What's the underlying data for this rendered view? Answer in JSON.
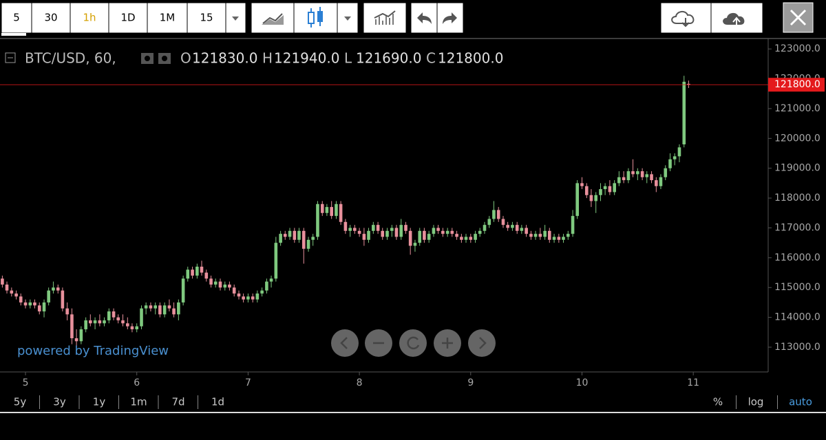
{
  "toolbar": {
    "intervals": [
      "5",
      "30",
      "1h",
      "1D",
      "1M",
      "15"
    ]
  },
  "status_line": {
    "symbol": "BTC/USD, 60,",
    "items": [
      {
        "key": "O",
        "value": "121830.0"
      },
      {
        "key": "H",
        "value": "121940.0"
      },
      {
        "key": "L",
        "value": "121690.0"
      },
      {
        "key": "C",
        "value": "121800.0"
      }
    ]
  },
  "branding": "powered by TradingView",
  "ranges": [
    "5y",
    "3y",
    "1y",
    "1m",
    "7d",
    "1d"
  ],
  "scale_options": [
    "%",
    "log",
    "auto"
  ],
  "chart_data": {
    "type": "candlestick",
    "up_color": "#7fc97f",
    "down_color": "#e8909c",
    "last_price_color": "#e41a1c",
    "xlim": [
      4.771,
      11.673
    ],
    "xticks": [
      5,
      6,
      7,
      8,
      9,
      10,
      11
    ],
    "ylim": [
      112170,
      123350
    ],
    "yticks": [
      {
        "value": 113000,
        "label": "113000.0"
      },
      {
        "value": 114000,
        "label": "114000.0"
      },
      {
        "value": 115000,
        "label": "115000.0"
      },
      {
        "value": 116000,
        "label": "116000.0"
      },
      {
        "value": 117000,
        "label": "117000.0"
      },
      {
        "value": 118000,
        "label": "118000.0"
      },
      {
        "value": 119000,
        "label": "119000.0"
      },
      {
        "value": 120000,
        "label": "120000.0"
      },
      {
        "value": 121000,
        "label": "121000.0"
      },
      {
        "value": 122000,
        "label": "122000.0"
      },
      {
        "value": 123000,
        "label": "123000.0"
      }
    ],
    "last_price": {
      "value": 121800,
      "label": "121800.0"
    },
    "x": [
      4.792,
      4.833,
      4.875,
      4.917,
      4.958,
      5,
      5.042,
      5.083,
      5.125,
      5.167,
      5.208,
      5.25,
      5.292,
      5.333,
      5.375,
      5.417,
      5.458,
      5.5,
      5.542,
      5.583,
      5.625,
      5.667,
      5.708,
      5.75,
      5.792,
      5.833,
      5.875,
      5.917,
      5.958,
      6,
      6.042,
      6.083,
      6.125,
      6.167,
      6.208,
      6.25,
      6.292,
      6.333,
      6.375,
      6.417,
      6.458,
      6.5,
      6.542,
      6.583,
      6.625,
      6.667,
      6.708,
      6.75,
      6.792,
      6.833,
      6.875,
      6.917,
      6.958,
      7,
      7.042,
      7.083,
      7.125,
      7.167,
      7.208,
      7.25,
      7.292,
      7.333,
      7.375,
      7.417,
      7.458,
      7.5,
      7.542,
      7.583,
      7.625,
      7.667,
      7.708,
      7.75,
      7.792,
      7.833,
      7.875,
      7.917,
      7.958,
      8,
      8.042,
      8.083,
      8.125,
      8.167,
      8.208,
      8.25,
      8.292,
      8.333,
      8.375,
      8.417,
      8.458,
      8.5,
      8.542,
      8.583,
      8.625,
      8.667,
      8.708,
      8.75,
      8.792,
      8.833,
      8.875,
      8.917,
      8.958,
      9,
      9.042,
      9.083,
      9.125,
      9.167,
      9.208,
      9.25,
      9.292,
      9.333,
      9.375,
      9.417,
      9.458,
      9.5,
      9.542,
      9.583,
      9.625,
      9.667,
      9.708,
      9.75,
      9.792,
      9.833,
      9.875,
      9.917,
      9.958,
      10,
      10.042,
      10.083,
      10.125,
      10.167,
      10.208,
      10.25,
      10.292,
      10.333,
      10.375,
      10.417,
      10.458,
      10.5,
      10.542,
      10.583,
      10.625,
      10.667,
      10.708,
      10.75,
      10.792,
      10.833,
      10.875,
      10.917,
      10.958
    ],
    "open": [
      115300,
      115100,
      114900,
      114800,
      114700,
      114500,
      114400,
      114500,
      114400,
      114200,
      114500,
      114900,
      115000,
      114900,
      114300,
      114100,
      113300,
      113200,
      113600,
      113900,
      113800,
      113900,
      113800,
      113900,
      114200,
      114000,
      113900,
      113800,
      113700,
      113600,
      113700,
      114300,
      114400,
      114300,
      114400,
      114100,
      114400,
      114300,
      114100,
      114500,
      115300,
      115600,
      115400,
      115700,
      115500,
      115300,
      115100,
      115200,
      115000,
      115100,
      115000,
      114800,
      114700,
      114600,
      114700,
      114600,
      114800,
      114900,
      115200,
      115300,
      116500,
      116800,
      116700,
      116900,
      116600,
      116900,
      116300,
      116600,
      116700,
      117800,
      117500,
      117700,
      117400,
      117800,
      117200,
      116900,
      117000,
      116900,
      116800,
      116600,
      116900,
      117100,
      116900,
      116700,
      116900,
      117000,
      116700,
      117100,
      116900,
      116400,
      116500,
      116900,
      116600,
      116800,
      117000,
      116900,
      116800,
      116900,
      116800,
      116700,
      116600,
      116700,
      116600,
      116800,
      116900,
      117100,
      117300,
      117600,
      117300,
      117100,
      117000,
      117100,
      116900,
      117000,
      116800,
      116700,
      116800,
      116700,
      116900,
      116600,
      116700,
      116600,
      116700,
      116800,
      117400,
      118500,
      118400,
      118100,
      117900,
      118100,
      118300,
      118400,
      118200,
      118500,
      118700,
      118600,
      118900,
      118800,
      118900,
      118700,
      118800,
      118600,
      118400,
      118700,
      119000,
      119300,
      119400,
      119800,
      121830
    ],
    "high": [
      115400,
      115200,
      115000,
      114900,
      114800,
      114600,
      114600,
      114600,
      114500,
      114600,
      115000,
      115200,
      115100,
      115000,
      114500,
      114300,
      113600,
      113700,
      114000,
      114100,
      114000,
      114100,
      114000,
      114300,
      114300,
      114100,
      114100,
      114000,
      113800,
      113800,
      114400,
      114500,
      114500,
      114500,
      114500,
      114500,
      114600,
      114500,
      114600,
      115400,
      115700,
      115700,
      115800,
      115900,
      115600,
      115400,
      115300,
      115300,
      115200,
      115200,
      115100,
      114900,
      114800,
      114800,
      114800,
      114900,
      115000,
      115300,
      115400,
      116700,
      116900,
      116900,
      117000,
      117000,
      117000,
      117000,
      116700,
      116800,
      117900,
      117900,
      117800,
      117900,
      117900,
      117900,
      117300,
      117100,
      117100,
      117000,
      117000,
      117000,
      117200,
      117200,
      117000,
      117000,
      117100,
      117100,
      117300,
      117200,
      117000,
      116600,
      117000,
      117000,
      116900,
      117100,
      117100,
      117000,
      117000,
      117000,
      116900,
      116800,
      116800,
      116800,
      116900,
      117000,
      117200,
      117400,
      117900,
      117700,
      117400,
      117200,
      117200,
      117200,
      117100,
      117100,
      116900,
      116900,
      117000,
      117100,
      117000,
      116800,
      116800,
      116800,
      116900,
      117600,
      118600,
      118700,
      118500,
      118300,
      118200,
      118500,
      118500,
      118600,
      118600,
      118900,
      118900,
      119000,
      119300,
      119000,
      119000,
      118900,
      118900,
      118700,
      118800,
      119100,
      119500,
      119500,
      119800,
      122100,
      121940
    ],
    "low": [
      115000,
      114800,
      114700,
      114600,
      114400,
      114300,
      114300,
      114300,
      114100,
      114000,
      114400,
      114800,
      114800,
      114200,
      113900,
      113100,
      113000,
      113100,
      113500,
      113700,
      113600,
      113700,
      113700,
      113800,
      113900,
      113800,
      113700,
      113600,
      113500,
      113500,
      113600,
      114100,
      114200,
      114100,
      114000,
      114000,
      114200,
      114000,
      113900,
      114400,
      115200,
      115300,
      115300,
      115400,
      115200,
      115000,
      115000,
      114900,
      114900,
      114900,
      114700,
      114600,
      114500,
      114500,
      114500,
      114500,
      114700,
      114800,
      115000,
      115200,
      116400,
      116600,
      116600,
      116500,
      116500,
      115800,
      116200,
      116400,
      116600,
      117400,
      117400,
      117300,
      117300,
      117100,
      116800,
      116700,
      116800,
      116700,
      116400,
      116500,
      116800,
      116800,
      116600,
      116600,
      116700,
      116600,
      116600,
      116800,
      116100,
      116200,
      116400,
      116500,
      116500,
      116700,
      116800,
      116700,
      116700,
      116700,
      116600,
      116500,
      116500,
      116500,
      116500,
      116700,
      116800,
      117000,
      117200,
      117200,
      117000,
      116900,
      116900,
      116800,
      116800,
      116700,
      116600,
      116600,
      116600,
      116600,
      116500,
      116500,
      116500,
      116500,
      116600,
      116700,
      117300,
      118300,
      118000,
      117700,
      117500,
      117900,
      118100,
      118100,
      118100,
      118400,
      118500,
      118500,
      118700,
      118600,
      118600,
      118500,
      118500,
      118200,
      118300,
      118600,
      118900,
      119100,
      119200,
      119700,
      121690
    ],
    "close": [
      115100,
      114900,
      114800,
      114700,
      114500,
      114400,
      114500,
      114400,
      114200,
      114500,
      114900,
      115000,
      114900,
      114300,
      114100,
      113300,
      113200,
      113600,
      113900,
      113800,
      113900,
      113800,
      113900,
      114200,
      114000,
      113900,
      113800,
      113700,
      113600,
      113700,
      114300,
      114400,
      114300,
      114400,
      114100,
      114400,
      114300,
      114100,
      114500,
      115300,
      115600,
      115400,
      115700,
      115500,
      115300,
      115100,
      115200,
      115000,
      115100,
      115000,
      114800,
      114700,
      114600,
      114700,
      114600,
      114800,
      114900,
      115200,
      115300,
      116500,
      116800,
      116700,
      116900,
      116600,
      116900,
      116300,
      116600,
      116700,
      117800,
      117500,
      117700,
      117400,
      117800,
      117200,
      116900,
      117000,
      116900,
      116800,
      116600,
      116900,
      117100,
      116900,
      116700,
      116900,
      117000,
      116700,
      117100,
      116900,
      116400,
      116500,
      116900,
      116600,
      116800,
      117000,
      116900,
      116800,
      116900,
      116800,
      116700,
      116600,
      116700,
      116600,
      116800,
      116900,
      117100,
      117300,
      117600,
      117300,
      117100,
      117000,
      117100,
      116900,
      117000,
      116800,
      116700,
      116800,
      116700,
      116900,
      116600,
      116700,
      116600,
      116700,
      116800,
      117400,
      118500,
      118400,
      118100,
      117900,
      118100,
      118300,
      118400,
      118200,
      118500,
      118700,
      118600,
      118900,
      118800,
      118900,
      118700,
      118800,
      118600,
      118400,
      118700,
      119000,
      119300,
      119400,
      119700,
      121900,
      121800
    ]
  }
}
